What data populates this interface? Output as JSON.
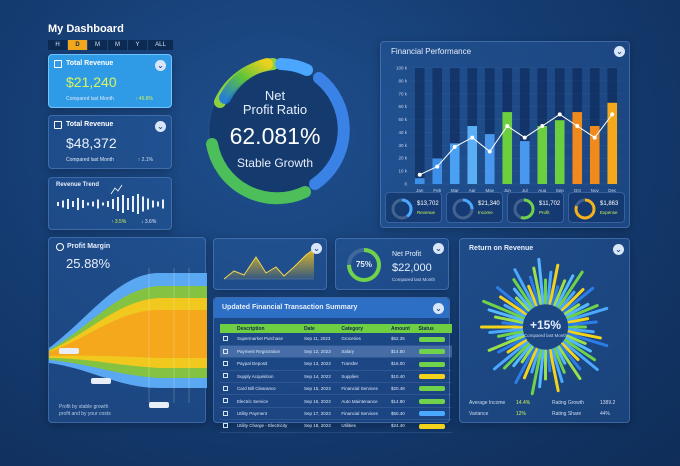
{
  "header": {
    "title": "My Dashboard",
    "periods": [
      "H",
      "D",
      "M",
      "M",
      "Y",
      "ALL"
    ],
    "active_period_index": 1
  },
  "kpi_cards": [
    {
      "label": "Total Revenue",
      "value": "$21,240",
      "sub": "Compared last Month",
      "pct": "↑ 46.8%",
      "pct_color": "#c9f25a",
      "bg": "#2f9be6"
    },
    {
      "label": "Total Revenue",
      "value": "$48,372",
      "sub": "Compared last Month",
      "pct": "↑ 2.1%",
      "pct_color": "#cfe0f7",
      "bg": "#2d6bb5"
    }
  ],
  "revenue_trend": {
    "label": "Revenue Trend",
    "pct_up": "↑ 3.5%",
    "pct_down": "↓ 3.6%"
  },
  "donut": {
    "line1": "Net",
    "line2": "Profit Ratio",
    "value": "62.081%",
    "caption": "Stable Growth",
    "fraction": 0.62081
  },
  "financial_performance": {
    "title": "Financial Performance",
    "y_ticks": [
      "100 k",
      "80 k",
      "70 k",
      "60 k",
      "50 k",
      "40 k",
      "30 k",
      "20 k",
      "10 k",
      "0"
    ],
    "mini_kpis": [
      {
        "value": "$13,702",
        "label": "Revenue",
        "fraction": 0.4,
        "color": "#4aa8ff"
      },
      {
        "value": "$21,340",
        "label": "Income",
        "fraction": 0.25,
        "color": "#4aa8ff"
      },
      {
        "value": "$11,702",
        "label": "Profit",
        "fraction": 0.55,
        "color": "#6fd24a"
      },
      {
        "value": "$1,863",
        "label": "Expense",
        "fraction": 0.8,
        "color": "#f3b21c"
      }
    ]
  },
  "chart_data": {
    "type": "bar",
    "title": "Financial Performance",
    "categories": [
      "Jan",
      "Feb",
      "Mar",
      "Apr",
      "May",
      "Jun",
      "Jul",
      "Aug",
      "Sep",
      "Oct",
      "Nov",
      "Dec"
    ],
    "series": [
      {
        "values": [
          8,
          15,
          32,
          40,
          28,
          50,
          40,
          50,
          60,
          50,
          40,
          60
        ]
      },
      {
        "values": [
          5,
          22,
          35,
          50,
          43,
          62,
          37,
          50,
          55,
          62,
          50,
          70
        ]
      }
    ],
    "ylim": [
      0,
      100
    ],
    "bar_colors": [
      "#3d8fe8",
      "#3d8fe8",
      "#4aa0f2",
      "#5aaef5",
      "#4a98ee",
      "#6ccf3f",
      "#4a98ee",
      "#6ccf3f",
      "#6ccf3f",
      "#f08a1c",
      "#f08a1c",
      "#f5a81c"
    ]
  },
  "profit_margin": {
    "label": "Profit Margin",
    "value": "25.88%",
    "footnote_1": "Profit by stable growth",
    "footnote_2": "profit and by your costs"
  },
  "net_profit": {
    "label": "Net Profit",
    "value": "$22,000",
    "pct": "75%",
    "sub": "Compared last Month",
    "fraction": 0.75
  },
  "transactions": {
    "title": "Updated Financial Transaction Summary",
    "columns": [
      "Description",
      "Date",
      "Category",
      "Amount",
      "Status"
    ],
    "rows": [
      {
        "desc": "Supermarket Purchase",
        "date": "Sep 11, 2023",
        "cat": "Groceries",
        "amt": "$52.35",
        "status_color": "#6fd24a",
        "highlight": false
      },
      {
        "desc": "Payment Registration",
        "date": "Sep 12, 2023",
        "cat": "Salary",
        "amt": "$14.80",
        "status_color": "#6fd24a",
        "highlight": true
      },
      {
        "desc": "Paypal Deposit",
        "date": "Sep 13, 2023",
        "cat": "Transfer",
        "amt": "$16.00",
        "status_color": "#6fd24a",
        "highlight": false
      },
      {
        "desc": "Supply Acquisition",
        "date": "Sep 14, 2023",
        "cat": "Supplies",
        "amt": "$10.40",
        "status_color": "#f3d21c",
        "highlight": false
      },
      {
        "desc": "Card Bill Clearance",
        "date": "Sep 15, 2023",
        "cat": "Financial Services",
        "amt": "$20.48",
        "status_color": "#6fd24a",
        "highlight": false
      },
      {
        "desc": "Electric Service",
        "date": "Sep 16, 2023",
        "cat": "Auto Maintenance",
        "amt": "$14.80",
        "status_color": "#6fd24a",
        "highlight": false
      },
      {
        "desc": "Utility Payment",
        "date": "Sep 17, 2023",
        "cat": "Financial Services",
        "amt": "$50.40",
        "status_color": "#4aa8ff",
        "highlight": false
      },
      {
        "desc": "Utility Charge - Electricity",
        "date": "Sep 18, 2023",
        "cat": "Utilities",
        "amt": "$24.40",
        "status_color": "#f3d21c",
        "highlight": false
      }
    ]
  },
  "return_on_revenue": {
    "title": "Return on Revenue",
    "value": "+15%",
    "sub": "Compared last Month",
    "stats": [
      {
        "label": "Average Income",
        "value": "14.4%",
        "label2": "Rating Growth",
        "value2": "1389.2"
      },
      {
        "label": "Variance",
        "value": "12%",
        "label2": "Rating Share",
        "value2": "44%"
      }
    ]
  }
}
